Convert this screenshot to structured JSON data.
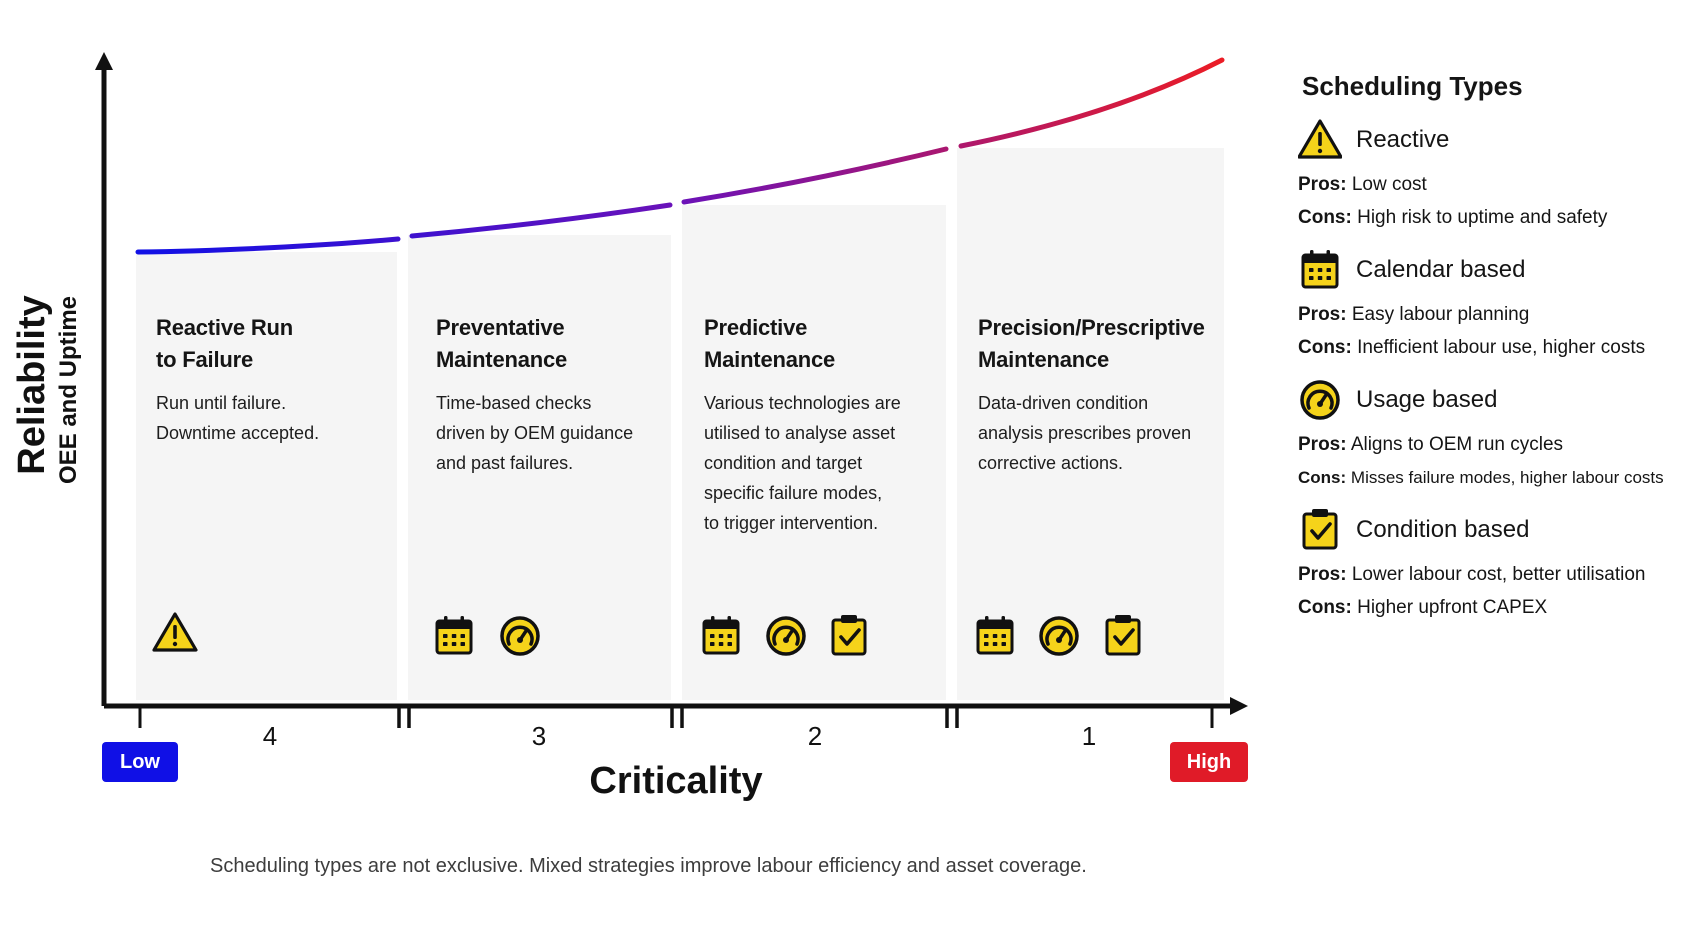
{
  "y_axis": {
    "title": "Reliability",
    "subtitle": "OEE and Uptime"
  },
  "x_axis": {
    "title": "Criticality",
    "low_label": "Low",
    "high_label": "High"
  },
  "colors": {
    "low": "#1010e6",
    "mid": "#7a12a8",
    "high": "#e01b28",
    "icon_fill": "#f5d31a"
  },
  "stages": [
    {
      "rank": "4",
      "title_line1": "Reactive Run",
      "title_line2": "to Failure",
      "description": [
        "Run until failure.",
        "Downtime accepted."
      ],
      "icons": [
        "warning-icon"
      ]
    },
    {
      "rank": "3",
      "title_line1": "Preventative",
      "title_line2": "Maintenance",
      "description": [
        "Time-based checks",
        "driven by OEM guidance",
        "and past failures."
      ],
      "icons": [
        "calendar-icon",
        "gauge-icon"
      ]
    },
    {
      "rank": "2",
      "title_line1": "Predictive",
      "title_line2": "Maintenance",
      "description": [
        "Various technologies are",
        "utilised to analyse asset",
        "condition and target",
        "specific failure modes,",
        "to trigger intervention."
      ],
      "icons": [
        "calendar-icon",
        "gauge-icon",
        "clipboard-check-icon"
      ]
    },
    {
      "rank": "1",
      "title_line1": "Precision/Prescriptive",
      "title_line2": "Maintenance",
      "description": [
        "Data-driven condition",
        "analysis prescribes proven",
        "corrective actions."
      ],
      "icons": [
        "calendar-icon",
        "gauge-icon",
        "clipboard-check-icon"
      ]
    }
  ],
  "legend": {
    "title": "Scheduling Types",
    "items": [
      {
        "icon": "warning-icon",
        "name": "Reactive",
        "pros_label": "Pros:",
        "pros": "Low cost",
        "cons_label": "Cons:",
        "cons": "High risk to uptime and safety"
      },
      {
        "icon": "calendar-icon",
        "name": "Calendar based",
        "pros_label": "Pros:",
        "pros": "Easy labour planning",
        "cons_label": "Cons:",
        "cons": "Inefficient labour use, higher costs"
      },
      {
        "icon": "gauge-icon",
        "name": "Usage based",
        "pros_label": "Pros:",
        "pros": "Aligns to OEM run cycles",
        "cons_label": "Cons:",
        "cons": "Misses failure modes, higher labour costs"
      },
      {
        "icon": "clipboard-check-icon",
        "name": "Condition based",
        "pros_label": "Pros:",
        "pros": "Lower labour cost, better utilisation",
        "cons_label": "Cons:",
        "cons": "Higher upfront CAPEX"
      }
    ]
  },
  "footnote": "Scheduling types are not exclusive. Mixed strategies improve labour efficiency and asset coverage."
}
